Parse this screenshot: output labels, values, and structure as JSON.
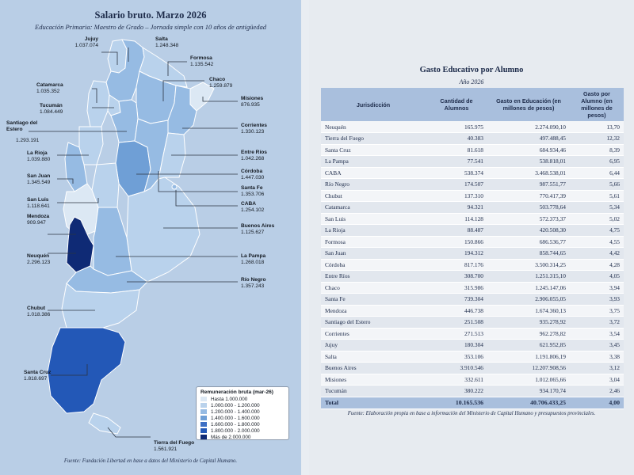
{
  "map_panel": {
    "title": "Salario bruto. Marzo 2026",
    "subtitle": "Educación Primaria: Maestro de Grado – Jornada simple con 10 años de antigüedad",
    "source": "Fuente: Fundación Libertad en base a datos del Ministerio de Capital Humano.",
    "colors": {
      "hasta_1000000": "#dce8f4",
      "r_1000000_1200000": "#b9d2ec",
      "r_1200000_1400000": "#96bbe3",
      "r_1400000_1600000": "#6f9fd6",
      "r_1600000_1800000": "#3d6fc4",
      "r_1800000_2000000": "#2358b7",
      "mas_2000000": "#0f2a75"
    },
    "legend": {
      "title": "Remuneración bruta (mar-26)",
      "items": [
        {
          "label": "Hasta 1.000.000",
          "color": "#dce8f4"
        },
        {
          "label": "1.000.000 - 1.200.000",
          "color": "#b9d2ec"
        },
        {
          "label": "1.200.000 - 1.400.000",
          "color": "#96bbe3"
        },
        {
          "label": "1.400.000 - 1.600.000",
          "color": "#6f9fd6"
        },
        {
          "label": "1.600.000 - 1.800.000",
          "color": "#3d6fc4"
        },
        {
          "label": "1.800.000 - 2.000.000",
          "color": "#2358b7"
        },
        {
          "label": "Más de 2.000.000",
          "color": "#0f2a75"
        }
      ]
    },
    "provinces": {
      "jujuy": {
        "name": "Jujuy",
        "value": "1.037.074"
      },
      "salta": {
        "name": "Salta",
        "value": "1.248.348"
      },
      "formosa": {
        "name": "Formosa",
        "value": "1.135.542"
      },
      "chaco": {
        "name": "Chaco",
        "value": "1.259.879"
      },
      "misiones": {
        "name": "Misiones",
        "value": "876.935"
      },
      "catamarca": {
        "name": "Catamarca",
        "value": "1.035.352"
      },
      "tucuman": {
        "name": "Tucumán",
        "value": "1.084.449"
      },
      "santiago": {
        "name": "Santiago del Estero",
        "value": "1.293.191"
      },
      "corrientes": {
        "name": "Corrientes",
        "value": "1.330.123"
      },
      "larioja": {
        "name": "La Rioja",
        "value": "1.039.880"
      },
      "entrerios": {
        "name": "Entre Ríos",
        "value": "1.042.268"
      },
      "cordoba": {
        "name": "Córdoba",
        "value": "1.447.030"
      },
      "sanjuan": {
        "name": "San Juan",
        "value": "1.345.549"
      },
      "santafe": {
        "name": "Santa Fe",
        "value": "1.353.706"
      },
      "sanluis": {
        "name": "San Luis",
        "value": "1.118.641"
      },
      "caba": {
        "name": "CABA",
        "value": "1.254.102"
      },
      "mendoza": {
        "name": "Mendoza",
        "value": "909.947"
      },
      "buenosaires": {
        "name": "Buenos Aires",
        "value": "1.125.627"
      },
      "neuquen": {
        "name": "Neuquén",
        "value": "2.296.123"
      },
      "lapampa": {
        "name": "La Pampa",
        "value": "1.268.018"
      },
      "rionegro": {
        "name": "Río Negro",
        "value": "1.357.243"
      },
      "chubut": {
        "name": "Chubut",
        "value": "1.018.386"
      },
      "santacruz": {
        "name": "Santa Cruz",
        "value": "1.818.697"
      },
      "tierradelfuego": {
        "name": "Tierra del Fuego",
        "value": "1.561.921"
      }
    }
  },
  "table_panel": {
    "title": "Gasto Educativo por Alumno",
    "subtitle": "Año 2026",
    "headers": {
      "jurisdiccion": "Jurisdicción",
      "alumnos": "Cantidad de Alumnos",
      "gasto": "Gasto en Educación (en millones de pesos)",
      "por_alumno": "Gasto por Alumno (en millones de pesos)"
    },
    "rows": [
      [
        "Neuquén",
        "165.975",
        "2.274.090,10",
        "13,70"
      ],
      [
        "Tierra del Fuego",
        "40.383",
        "497.488,45",
        "12,32"
      ],
      [
        "Santa Cruz",
        "81.618",
        "684.934,46",
        "8,39"
      ],
      [
        "La Pampa",
        "77.541",
        "538.818,01",
        "6,95"
      ],
      [
        "CABA",
        "538.374",
        "3.468.538,01",
        "6,44"
      ],
      [
        "Río Negro",
        "174.507",
        "987.551,77",
        "5,66"
      ],
      [
        "Chubut",
        "137.310",
        "770.417,39",
        "5,61"
      ],
      [
        "Catamarca",
        "94.321",
        "503.778,64",
        "5,34"
      ],
      [
        "San Luis",
        "114.128",
        "572.373,37",
        "5,02"
      ],
      [
        "La Rioja",
        "88.487",
        "420.508,30",
        "4,75"
      ],
      [
        "Formosa",
        "150.866",
        "686.536,77",
        "4,55"
      ],
      [
        "San Juan",
        "194.312",
        "858.744,65",
        "4,42"
      ],
      [
        "Córdoba",
        "817.176",
        "3.500.314,25",
        "4,28"
      ],
      [
        "Entre Ríos",
        "308.700",
        "1.251.315,10",
        "4,05"
      ],
      [
        "Chaco",
        "315.986",
        "1.245.147,06",
        "3,94"
      ],
      [
        "Santa Fe",
        "739.304",
        "2.906.055,05",
        "3,93"
      ],
      [
        "Mendoza",
        "446.738",
        "1.674.360,13",
        "3,75"
      ],
      [
        "Santiago del Estero",
        "251.508",
        "935.278,92",
        "3,72"
      ],
      [
        "Corrientes",
        "271.513",
        "962.278,82",
        "3,54"
      ],
      [
        "Jujuy",
        "180.304",
        "621.952,85",
        "3,45"
      ],
      [
        "Salta",
        "353.106",
        "1.191.806,19",
        "3,38"
      ],
      [
        "Buenos Aires",
        "3.910.546",
        "12.207.908,56",
        "3,12"
      ],
      [
        "Misiones",
        "332.611",
        "1.012.065,66",
        "3,04"
      ],
      [
        "Tucumán",
        "380.222",
        "934.170,74",
        "2,46"
      ]
    ],
    "total": {
      "label": "Total",
      "alumnos": "10.165.536",
      "gasto": "40.706.433,25",
      "por_alumno": "4,00"
    },
    "source": "Fuente: Elaboración propia en base a información del Ministerio de Capital Humano y presupuestos provinciales."
  }
}
